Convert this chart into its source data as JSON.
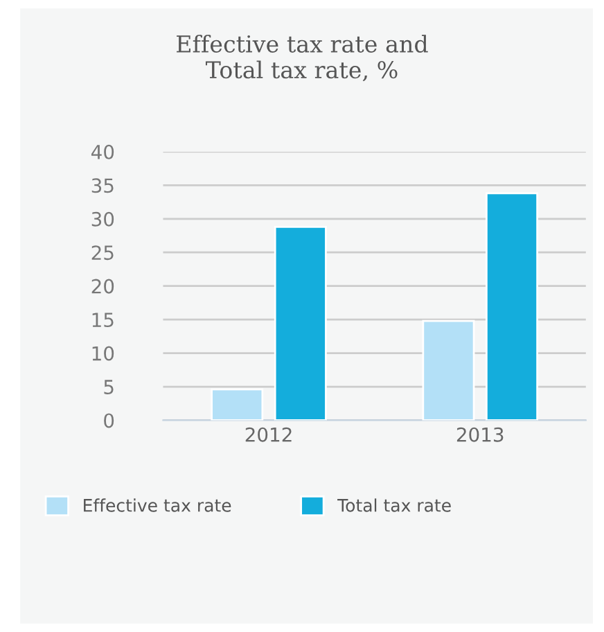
{
  "chart_data": {
    "type": "bar",
    "title": "Effective tax rate and\nTotal tax rate, %",
    "categories": [
      "2012",
      "2013"
    ],
    "series": [
      {
        "name": "Effective tax rate",
        "color": "#b3e0f7",
        "values": [
          4.6,
          14.8
        ]
      },
      {
        "name": "Total tax rate",
        "color": "#14addc",
        "values": [
          28.8,
          33.8
        ]
      }
    ],
    "ylim": [
      0,
      40
    ],
    "yticks": [
      0,
      5,
      10,
      15,
      20,
      25,
      30,
      35,
      40
    ],
    "grid": "y",
    "legend": "bottom left"
  }
}
